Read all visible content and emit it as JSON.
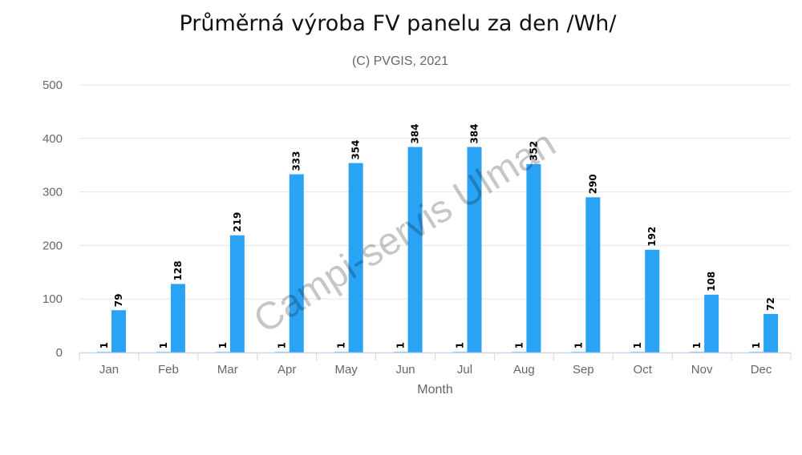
{
  "chart_data": {
    "type": "bar",
    "title": "Průměrná výroba FV panelu za den /Wh/",
    "subtitle": "(C) PVGIS, 2021",
    "xlabel": "Month",
    "ylabel": "",
    "ylim": [
      0,
      500
    ],
    "yticks": [
      0,
      100,
      200,
      300,
      400,
      500
    ],
    "grid": true,
    "categories": [
      "Jan",
      "Feb",
      "Mar",
      "Apr",
      "May",
      "Jun",
      "Jul",
      "Aug",
      "Sep",
      "Oct",
      "Nov",
      "Dec"
    ],
    "series": [
      {
        "values": [
          1,
          1,
          1,
          1,
          1,
          1,
          1,
          1,
          1,
          1,
          1,
          1
        ],
        "color": "#2aa3f5"
      },
      {
        "values": [
          79,
          128,
          219,
          333,
          354,
          384,
          384,
          352,
          290,
          192,
          108,
          72
        ],
        "color": "#2aa3f5"
      }
    ],
    "watermark": "Campi-servis Ulman"
  }
}
